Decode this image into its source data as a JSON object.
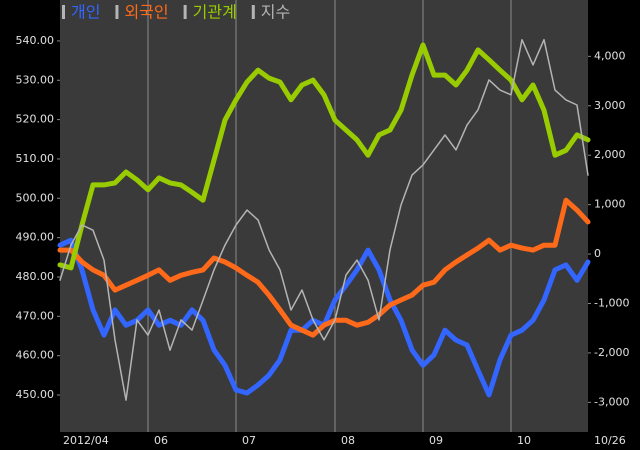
{
  "chart_data": {
    "type": "line",
    "categories": [
      "2012/04",
      null,
      null,
      null,
      null,
      null,
      null,
      null,
      "06",
      null,
      null,
      null,
      null,
      null,
      null,
      null,
      "07",
      null,
      null,
      null,
      null,
      null,
      null,
      null,
      null,
      "08",
      null,
      null,
      null,
      null,
      null,
      null,
      null,
      "09",
      null,
      null,
      null,
      null,
      null,
      null,
      null,
      "10",
      null,
      null,
      null,
      null,
      null,
      null,
      "10/26"
    ],
    "series": [
      {
        "name": "개인",
        "color": "#3366ff",
        "axis": "y2",
        "values": [
          180,
          280,
          -320,
          -1130,
          -1640,
          -1130,
          -1440,
          -1340,
          -1130,
          -1440,
          -1340,
          -1440,
          -1130,
          -1340,
          -1940,
          -2250,
          -2750,
          -2810,
          -2650,
          -2450,
          -2140,
          -1540,
          -1540,
          -1340,
          -1440,
          -930,
          -630,
          -320,
          80,
          -320,
          -930,
          -1340,
          -1940,
          -2250,
          -2040,
          -1540,
          -1740,
          -1840,
          -2350,
          -2850,
          -2140,
          -1640,
          -1540,
          -1340,
          -930,
          -320,
          -220,
          -530,
          -160
        ]
      },
      {
        "name": "외국인",
        "color": "#ff6a1a",
        "axis": "y2",
        "values": [
          80,
          80,
          -160,
          -320,
          -430,
          -730,
          -630,
          -530,
          -430,
          -320,
          -530,
          -430,
          -370,
          -320,
          -80,
          -160,
          -280,
          -430,
          -570,
          -830,
          -1130,
          -1440,
          -1540,
          -1640,
          -1440,
          -1340,
          -1340,
          -1440,
          -1380,
          -1230,
          -1030,
          -930,
          -830,
          -630,
          -570,
          -320,
          -160,
          -20,
          120,
          280,
          80,
          180,
          120,
          80,
          180,
          180,
          1090,
          890,
          650
        ]
      },
      {
        "name": "기관계",
        "color": "#99cc00",
        "axis": "y2",
        "values": [
          -220,
          -280,
          590,
          1400,
          1400,
          1440,
          1660,
          1500,
          1300,
          1540,
          1440,
          1400,
          1250,
          1090,
          1900,
          2710,
          3120,
          3480,
          3720,
          3560,
          3480,
          3120,
          3420,
          3520,
          3220,
          2710,
          2510,
          2310,
          2000,
          2410,
          2510,
          2910,
          3620,
          4230,
          3620,
          3620,
          3420,
          3720,
          4130,
          3930,
          3720,
          3520,
          3120,
          3420,
          2910,
          2000,
          2100,
          2410,
          2310
        ]
      },
      {
        "name": "지수",
        "color": "#b4b4b4",
        "axis": "y",
        "values": [
          479.2,
          488.1,
          493.2,
          491.9,
          484.3,
          464.0,
          448.7,
          469.1,
          465.2,
          471.6,
          461.4,
          469.1,
          466.5,
          474.1,
          481.8,
          488.1,
          493.2,
          497.0,
          494.5,
          486.9,
          481.8,
          471.6,
          476.7,
          469.1,
          464.0,
          469.1,
          480.5,
          484.3,
          479.2,
          469.1,
          486.9,
          498.3,
          505.9,
          508.5,
          512.3,
          516.1,
          512.3,
          518.6,
          522.5,
          530.1,
          527.5,
          526.3,
          540.3,
          533.9,
          540.3,
          527.5,
          525.0,
          523.7,
          505.9
        ]
      }
    ],
    "ylim": [
      440.6,
      550.4
    ],
    "yticks": [
      {
        "value": 450,
        "label": "450.00"
      },
      {
        "value": 460,
        "label": "460.00"
      },
      {
        "value": 470,
        "label": "470.00"
      },
      {
        "value": 480,
        "label": "480.00"
      },
      {
        "value": 490,
        "label": "490.00"
      },
      {
        "value": 500,
        "label": "500.00"
      },
      {
        "value": 510,
        "label": "510.00"
      },
      {
        "value": 520,
        "label": "520.00"
      },
      {
        "value": 530,
        "label": "530.00"
      },
      {
        "value": 540,
        "label": "540.00"
      }
    ],
    "y2lim": [
      -3600,
      5140
    ],
    "y2ticks": [
      {
        "value": -3000,
        "label": "-3,000"
      },
      {
        "value": -2000,
        "label": "-2,000"
      },
      {
        "value": -1000,
        "label": "-1,000"
      },
      0,
      {
        "value": 1000,
        "label": "1,000"
      },
      {
        "value": 2000,
        "label": "2,000"
      },
      {
        "value": 3000,
        "label": "3,000"
      },
      {
        "value": 4000,
        "label": "4,000"
      }
    ],
    "grid": "x"
  }
}
